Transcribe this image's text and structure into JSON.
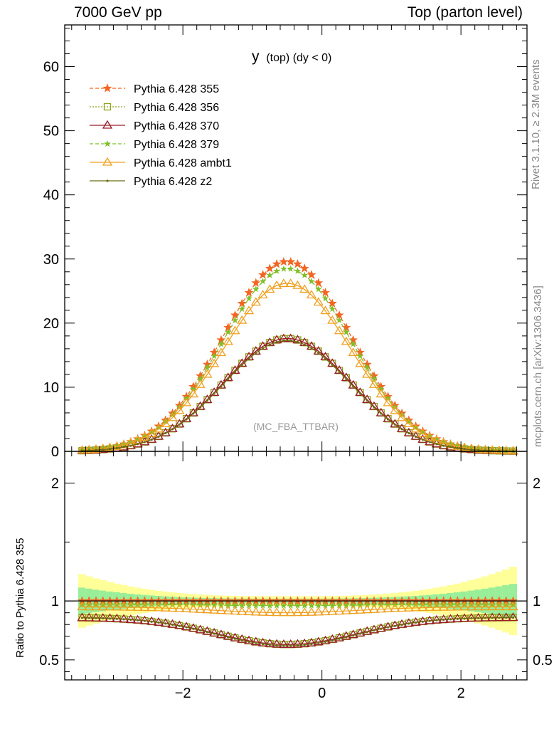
{
  "header": {
    "left": "7000 GeV pp",
    "right": "Top (parton level)"
  },
  "side_labels": {
    "rivet": "Rivet 3.1.10, ≥ 2.3M events",
    "mcplots": "mcplots.cern.ch [arXiv:1306.3436]"
  },
  "plot": {
    "title_main": "y",
    "title_sub": "(top) (dy < 0)",
    "watermark": "(MC_FBA_TTBAR)"
  },
  "ratio_ylabel": "Ratio to Pythia 6.428 355",
  "chart_data": [
    {
      "type": "line",
      "panel": "main",
      "xlim": [
        -3.7,
        2.95
      ],
      "ylim": [
        0,
        66.5
      ],
      "yticks": [
        0,
        10,
        20,
        30,
        40,
        50,
        60
      ],
      "ytick_labels": [
        "0",
        "10",
        "20",
        "30",
        "40",
        "50",
        "60"
      ],
      "xticks": [
        -2,
        0,
        2
      ],
      "legend_position": "top-left",
      "series": [
        {
          "name": "Pythia 6.428 355",
          "color": "#f26522",
          "dash": "5,3",
          "marker": "star",
          "peak": 29.6
        },
        {
          "name": "Pythia 6.428 356",
          "color": "#8aa51a",
          "dash": "2,2",
          "marker": "square",
          "peak": 17.6
        },
        {
          "name": "Pythia 6.428 370",
          "color": "#9b1c2a",
          "dash": "",
          "marker": "triangle",
          "peak": 17.6
        },
        {
          "name": "Pythia 6.428 379",
          "color": "#7fbf2a",
          "dash": "5,3",
          "marker": "star-small",
          "peak": 28.5
        },
        {
          "name": "Pythia 6.428 ambt1",
          "color": "#f0a020",
          "dash": "",
          "marker": "triangle",
          "peak": 26.2
        },
        {
          "name": "Pythia 6.428 z2",
          "color": "#6b6d12",
          "dash": "",
          "marker": "dot",
          "peak": 17.3
        }
      ],
      "curve": {
        "center": -0.5,
        "width": 0.92,
        "x_first": -3.45,
        "x_last": 2.75,
        "n_points": 63
      }
    },
    {
      "type": "line",
      "panel": "ratio",
      "xlim": [
        -3.7,
        2.95
      ],
      "ylim": [
        0.33,
        2.27
      ],
      "yticks": [
        0.5,
        1,
        2
      ],
      "ytick_labels": [
        "0.5",
        "1",
        "2"
      ],
      "xticks": [
        -2,
        0,
        2
      ],
      "xtick_labels": [
        "−2",
        "0",
        "2"
      ],
      "reference": 1,
      "ratios": {
        "Pythia 6.428 356": {
          "edge": 0.86,
          "center": 0.63
        },
        "Pythia 6.428 370": {
          "edge": 0.86,
          "center": 0.63
        },
        "Pythia 6.428 379": {
          "edge": 0.97,
          "center": 0.96
        },
        "Pythia 6.428 ambt1": {
          "edge": 0.95,
          "center": 0.9
        },
        "Pythia 6.428 z2": {
          "edge": 0.86,
          "center": 0.62
        }
      },
      "band": {
        "outer_color": "#ffff99",
        "inner_color": "#99ee99"
      }
    }
  ]
}
